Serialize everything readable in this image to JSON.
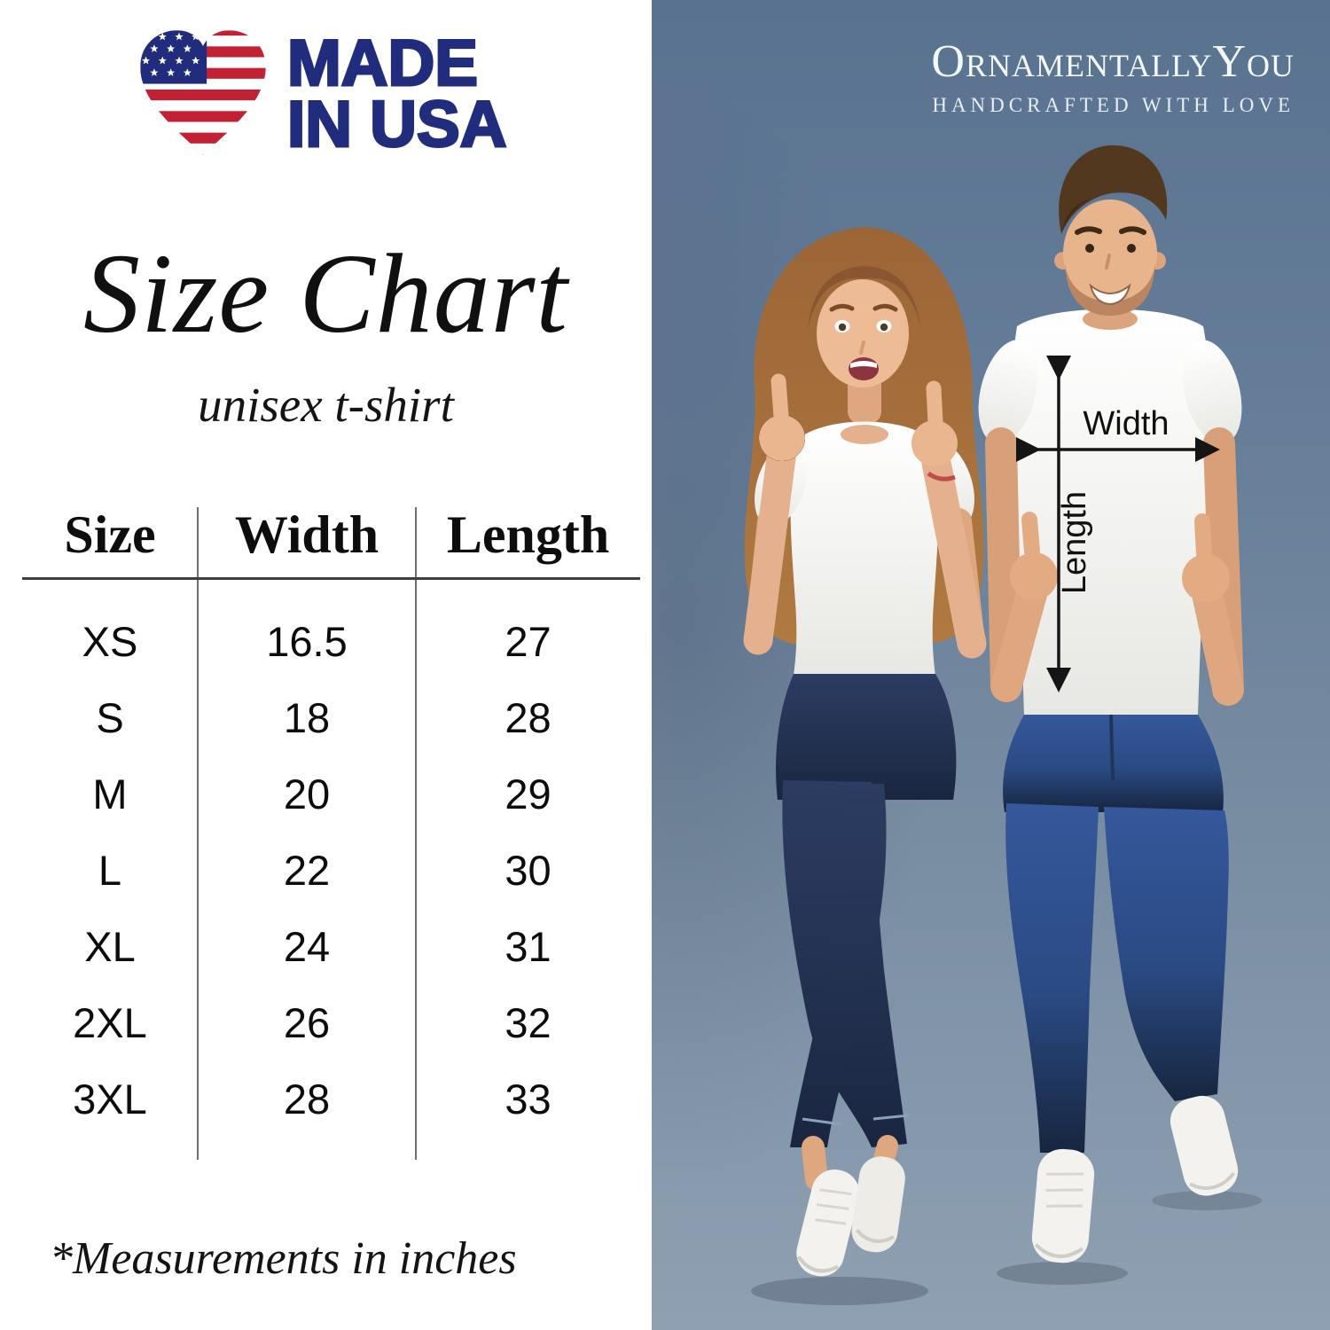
{
  "badge": {
    "line1": "MADE",
    "line2": "IN USA"
  },
  "title": "Size Chart",
  "subtitle": "unisex t-shirt",
  "table": {
    "headers": [
      "Size",
      "Width",
      "Length"
    ],
    "rows": [
      [
        "XS",
        "16.5",
        "27"
      ],
      [
        "S",
        "18",
        "28"
      ],
      [
        "M",
        "20",
        "29"
      ],
      [
        "L",
        "22",
        "30"
      ],
      [
        "XL",
        "24",
        "31"
      ],
      [
        "2XL",
        "26",
        "32"
      ],
      [
        "3XL",
        "28",
        "33"
      ]
    ]
  },
  "footnote": "*Measurements in inches",
  "brand": {
    "name": "OrnamentallyYou",
    "tagline": "HANDCRAFTED WITH LOVE"
  },
  "diagram": {
    "width_label": "Width",
    "length_label": "Length"
  },
  "colors": {
    "accent_navy": "#212d7c",
    "flag_red": "#c12133",
    "photo_bg_top": "#59728f",
    "photo_bg_bottom": "#8fa0b2"
  }
}
